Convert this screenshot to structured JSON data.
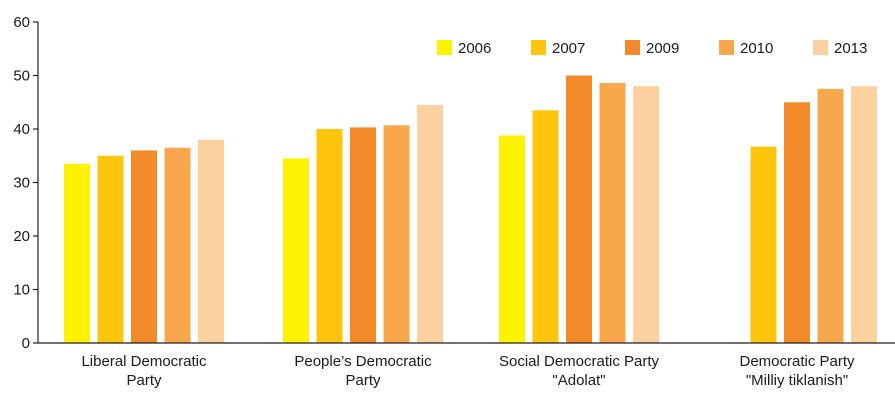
{
  "chart_data": {
    "type": "bar",
    "title": "",
    "xlabel": "",
    "ylabel": "",
    "ylim": [
      0,
      60
    ],
    "yticks": [
      0,
      10,
      20,
      30,
      40,
      50,
      60
    ],
    "grid": false,
    "legend_position": "top-right",
    "categories": [
      [
        "Liberal Democratic",
        "Party"
      ],
      [
        "People’s Democratic",
        "Party"
      ],
      [
        "Social Democratic Party",
        "\"Adolat\""
      ],
      [
        "Democratic Party",
        "\"Milliy tiklanish\""
      ]
    ],
    "series": [
      {
        "name": "2006",
        "color": "#fff200",
        "values": [
          33.5,
          34.5,
          38.8,
          null
        ]
      },
      {
        "name": "2007",
        "color": "#ffc40c",
        "values": [
          35.0,
          40.0,
          43.5,
          36.7
        ]
      },
      {
        "name": "2009",
        "color": "#f28a2a",
        "values": [
          36.0,
          40.3,
          50.0,
          45.0
        ]
      },
      {
        "name": "2010",
        "color": "#f9a74d",
        "values": [
          36.5,
          40.7,
          48.6,
          47.5
        ]
      },
      {
        "name": "2013",
        "color": "#fdd19f",
        "values": [
          38.0,
          44.5,
          48.0,
          48.0
        ]
      }
    ]
  }
}
